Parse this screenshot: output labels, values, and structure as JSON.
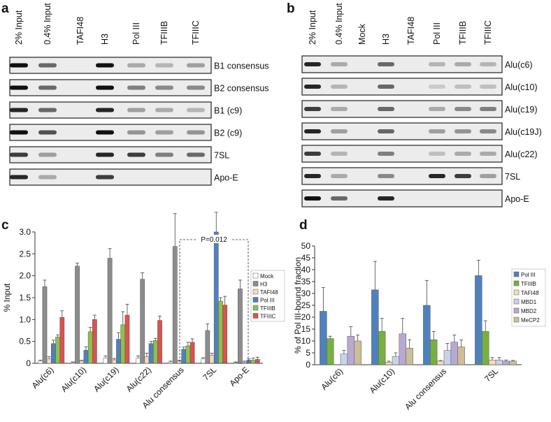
{
  "panels": [
    {
      "label": "a",
      "columns": [
        "2% Input",
        "0.4% Input",
        "TAFI48",
        "H3",
        "Pol III",
        "TFIIIB",
        "TFIIIC"
      ],
      "rows": [
        "B1 consensus",
        "B2 consensus",
        "B1 (c9)",
        "B2 (c9)",
        "7SL",
        "Apo-E"
      ]
    },
    {
      "label": "b",
      "columns": [
        "2% Input",
        "0.4% Input",
        "Mock",
        "H3",
        "TAFI48",
        "Pol III",
        "TFIIIB",
        "TFIIIC"
      ],
      "rows": [
        "Alu(c6)",
        "Alu(c10)",
        "Alu(c19)",
        "Alu(c19J)",
        "Alu(c22)",
        "7SL",
        "Apo-E"
      ]
    },
    {
      "label": "c"
    },
    {
      "label": "d"
    }
  ],
  "chart_data": [
    {
      "type": "bar",
      "ylabel": "% Input",
      "annotation": "P=0.012",
      "categories": [
        "Alu(c6)",
        "Alu(c10)",
        "Alu(c19)",
        "Alu(c22)",
        "Alu consensus",
        "7SL",
        "Apo-E"
      ],
      "ylim": [
        0,
        3
      ],
      "yticks": [
        0,
        0.5,
        {
          "value": 1,
          "label": "1.0"
        },
        1.5,
        {
          "value": 2,
          "label": "2.0"
        },
        2.5,
        {
          "value": 3,
          "label": "3.0"
        }
      ],
      "series": [
        {
          "name": "Mock",
          "color": "#ffffff",
          "values": [
            0.05,
            0.02,
            0.12,
            0.12,
            0.03,
            0.1,
            0.02
          ],
          "errors": [
            0.02,
            0.01,
            0.05,
            0.05,
            0.02,
            0.03,
            0.01
          ]
        },
        {
          "name": "H3",
          "color": "#8c8c8c",
          "values": [
            1.75,
            2.22,
            2.4,
            1.92,
            2.67,
            0.75,
            1.7
          ],
          "errors": [
            0.15,
            0.07,
            0.22,
            0.15,
            0.75,
            0.15,
            0.2
          ]
        },
        {
          "name": "TAFI48",
          "color": "#f8d9b8",
          "values": [
            0.1,
            0.05,
            0.08,
            0.15,
            0.05,
            0.18,
            0.03
          ],
          "errors": [
            0.05,
            0.02,
            0.03,
            0.08,
            0.02,
            0.05,
            0.02
          ]
        },
        {
          "name": "Pol III",
          "color": "#4f81bd",
          "values": [
            0.45,
            0.3,
            0.55,
            0.45,
            0.32,
            3.0,
            0.07
          ],
          "errors": [
            0.08,
            0.08,
            0.15,
            0.05,
            0.05,
            0.45,
            0.03
          ]
        },
        {
          "name": "TFIIIB",
          "color": "#8ec14a",
          "values": [
            0.6,
            0.72,
            0.88,
            0.52,
            0.4,
            1.42,
            0.07
          ],
          "errors": [
            0.05,
            0.1,
            0.3,
            0.05,
            0.08,
            0.08,
            0.05
          ]
        },
        {
          "name": "TFIIIC",
          "color": "#d9534f",
          "values": [
            1.05,
            1.0,
            1.1,
            0.98,
            0.48,
            1.33,
            0.09
          ],
          "errors": [
            0.15,
            0.1,
            0.25,
            0.1,
            0.08,
            0.2,
            0.05
          ]
        }
      ]
    },
    {
      "type": "bar",
      "ylabel": "% of Pol III-bound fraction",
      "categories": [
        "Alu(c6)",
        "Alu(c10)",
        "Alu consensus",
        "7SL"
      ],
      "ylim": [
        0,
        50
      ],
      "yticks": [
        0,
        5,
        10,
        15,
        20,
        25,
        30,
        35,
        40,
        45,
        50
      ],
      "series": [
        {
          "name": "Pol III",
          "color": "#4f81bd",
          "values": [
            22.5,
            31.5,
            25,
            37.5
          ],
          "errors": [
            10,
            12,
            10.5,
            6.5
          ]
        },
        {
          "name": "TFIIIB",
          "color": "#77b041",
          "values": [
            11,
            14,
            10.5,
            14
          ],
          "errors": [
            1,
            5.5,
            3.5,
            4.5
          ]
        },
        {
          "name": "TAFI48",
          "color": "#f9d9b5",
          "values": [
            0,
            1,
            1.5,
            2
          ],
          "errors": [
            0,
            0.5,
            0.3,
            1
          ]
        },
        {
          "name": "MBD1",
          "color": "#c6d4ea",
          "values": [
            4.5,
            3.5,
            6,
            2
          ],
          "errors": [
            1.5,
            1.5,
            3,
            1
          ]
        },
        {
          "name": "MBD2",
          "color": "#b9a9d2",
          "values": [
            12,
            13,
            9.5,
            1.5
          ],
          "errors": [
            4,
            6.5,
            3,
            0.5
          ]
        },
        {
          "name": "MeCP2",
          "color": "#cbbf97",
          "values": [
            10,
            7,
            7.5,
            1.5
          ],
          "errors": [
            2.5,
            3.5,
            3,
            0.3
          ]
        }
      ]
    }
  ]
}
